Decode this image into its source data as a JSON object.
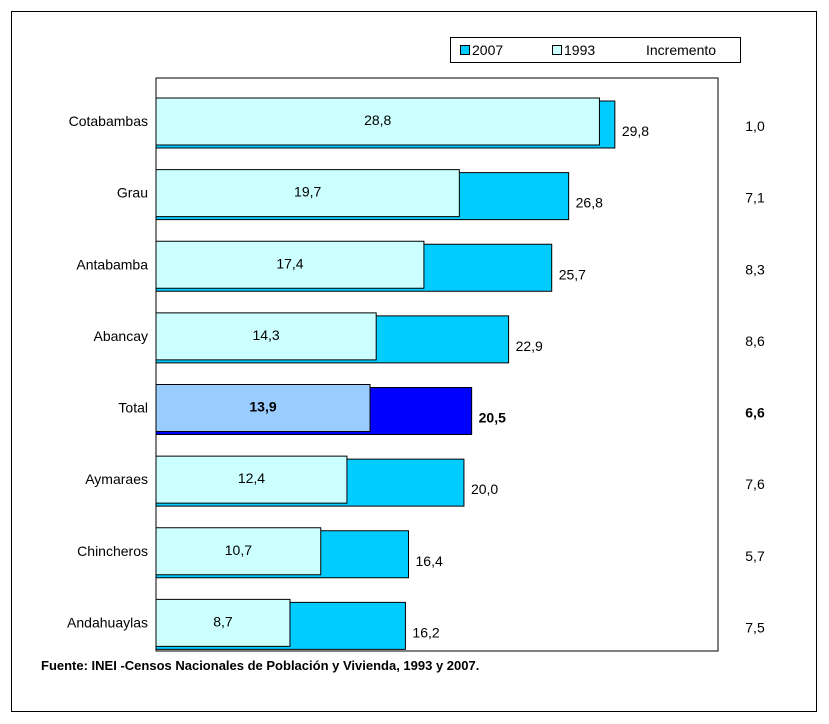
{
  "chart_data": {
    "type": "bar",
    "orientation": "horizontal",
    "categories": [
      "Cotabambas",
      "Grau",
      "Antabamba",
      "Abancay",
      "Total",
      "Aymaraes",
      "Chincheros",
      "Andahuaylas"
    ],
    "series": [
      {
        "name": "2007",
        "values": [
          29.8,
          26.8,
          25.7,
          22.9,
          20.5,
          20.0,
          16.4,
          16.2
        ],
        "color": "#00CCFF",
        "highlight_color": "#0000FF"
      },
      {
        "name": "1993",
        "values": [
          28.8,
          19.7,
          17.4,
          14.3,
          13.9,
          12.4,
          10.7,
          8.7
        ],
        "color": "#CCFFFF",
        "highlight_color": "#99CCFF"
      }
    ],
    "increment": {
      "name": "Incremento",
      "values": [
        1.0,
        7.1,
        8.3,
        8.6,
        6.6,
        7.6,
        5.7,
        7.5
      ]
    },
    "value_labels": {
      "2007": [
        "29,8",
        "26,8",
        "25,7",
        "22,9",
        "20,5",
        "20,0",
        "16,4",
        "16,2"
      ],
      "1993": [
        "28,8",
        "19,7",
        "17,4",
        "14,3",
        "13,9",
        "12,4",
        "10,7",
        "8,7"
      ],
      "increment": [
        "1,0",
        "7,1",
        "8,3",
        "8,6",
        "6,6",
        "7,6",
        "5,7",
        "7,5"
      ]
    },
    "highlight_category": "Total",
    "xlim": [
      0,
      36.5
    ],
    "grid": false,
    "legend_position": "top-right"
  },
  "legend": {
    "series_2007": "2007",
    "series_1993": "1993",
    "increment": "Incremento"
  },
  "footnote": "Fuente: INEI -Censos Nacionales de Población y Vivienda, 1993 y 2007."
}
